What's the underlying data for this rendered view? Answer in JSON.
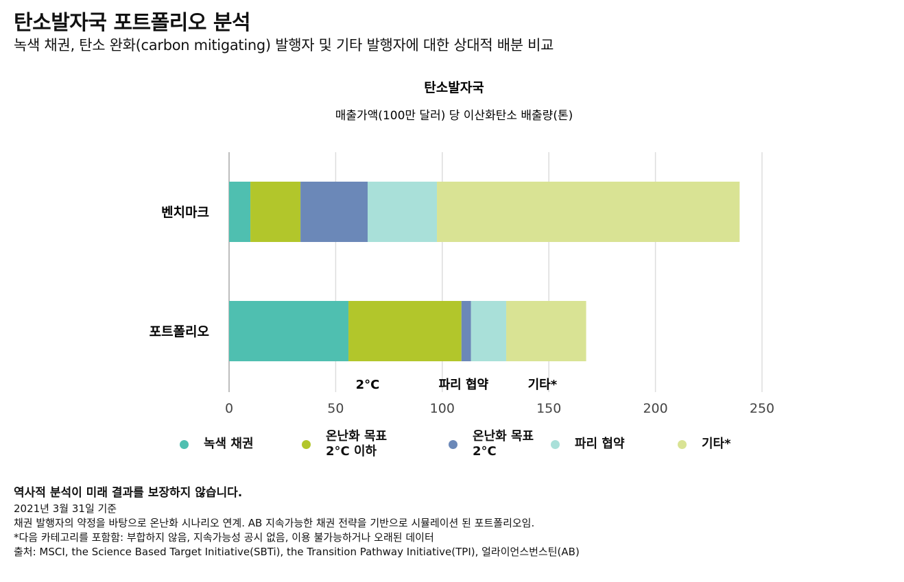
{
  "header": {
    "title": "탄소발자국 포트폴리오 분석",
    "subtitle": "녹색 채권, 탄소 완화(carbon mitigating) 발행자 및 기타 발행자에 대한 상대적 배분 비교"
  },
  "chart_data": {
    "type": "bar",
    "orientation": "horizontal",
    "stacked": true,
    "title": "탄소발자국",
    "subtitle": "매출가액(100만 달러) 당 이산화탄소 배출량(톤)",
    "categories": [
      "벤치마크",
      "포트폴리오"
    ],
    "series": [
      {
        "name": "녹색 채권",
        "values": [
          10,
          56
        ],
        "color": "#4fbfb0"
      },
      {
        "name": "온난화 목표\n2°C 이하",
        "values": [
          23.5,
          53
        ],
        "color": "#b2c62b"
      },
      {
        "name": "온난화 목표\n2°C",
        "values": [
          31.5,
          4.5
        ],
        "color": "#6b88b8"
      },
      {
        "name": "파리 협약",
        "values": [
          32.5,
          16.5
        ],
        "color": "#a9e0d9"
      },
      {
        "name": "기타*",
        "values": [
          142,
          37.5
        ],
        "color": "#d9e394"
      }
    ],
    "xlim": [
      0,
      250
    ],
    "xticks": [
      0,
      50,
      100,
      150,
      200,
      250
    ],
    "grid": true,
    "legend_position": "bottom",
    "annotations": [
      {
        "text": "2°C",
        "x": 65
      },
      {
        "text": "파리 협약",
        "x": 110
      },
      {
        "text": "기타*",
        "x": 147
      }
    ]
  },
  "footer": {
    "disclaimer": "역사적 분석이 미래 결과를 보장하지 않습니다.",
    "notes": [
      "2021년 3월 31일 기준",
      "채권 발행자의 약정을 바탕으로 온난화 시나리오 연계. AB 지속가능한 채권 전략을 기반으로 시뮬레이션 된 포트폴리오임.",
      "*다음 카테고리를 포함함: 부합하지 않음, 지속가능성 공시 없음, 이용 불가능하거나 오래된 데이터",
      "출처: MSCI, the Science Based Target Initiative(SBTi), the Transition Pathway Initiative(TPI), 얼라이언스번스틴(AB)"
    ]
  }
}
